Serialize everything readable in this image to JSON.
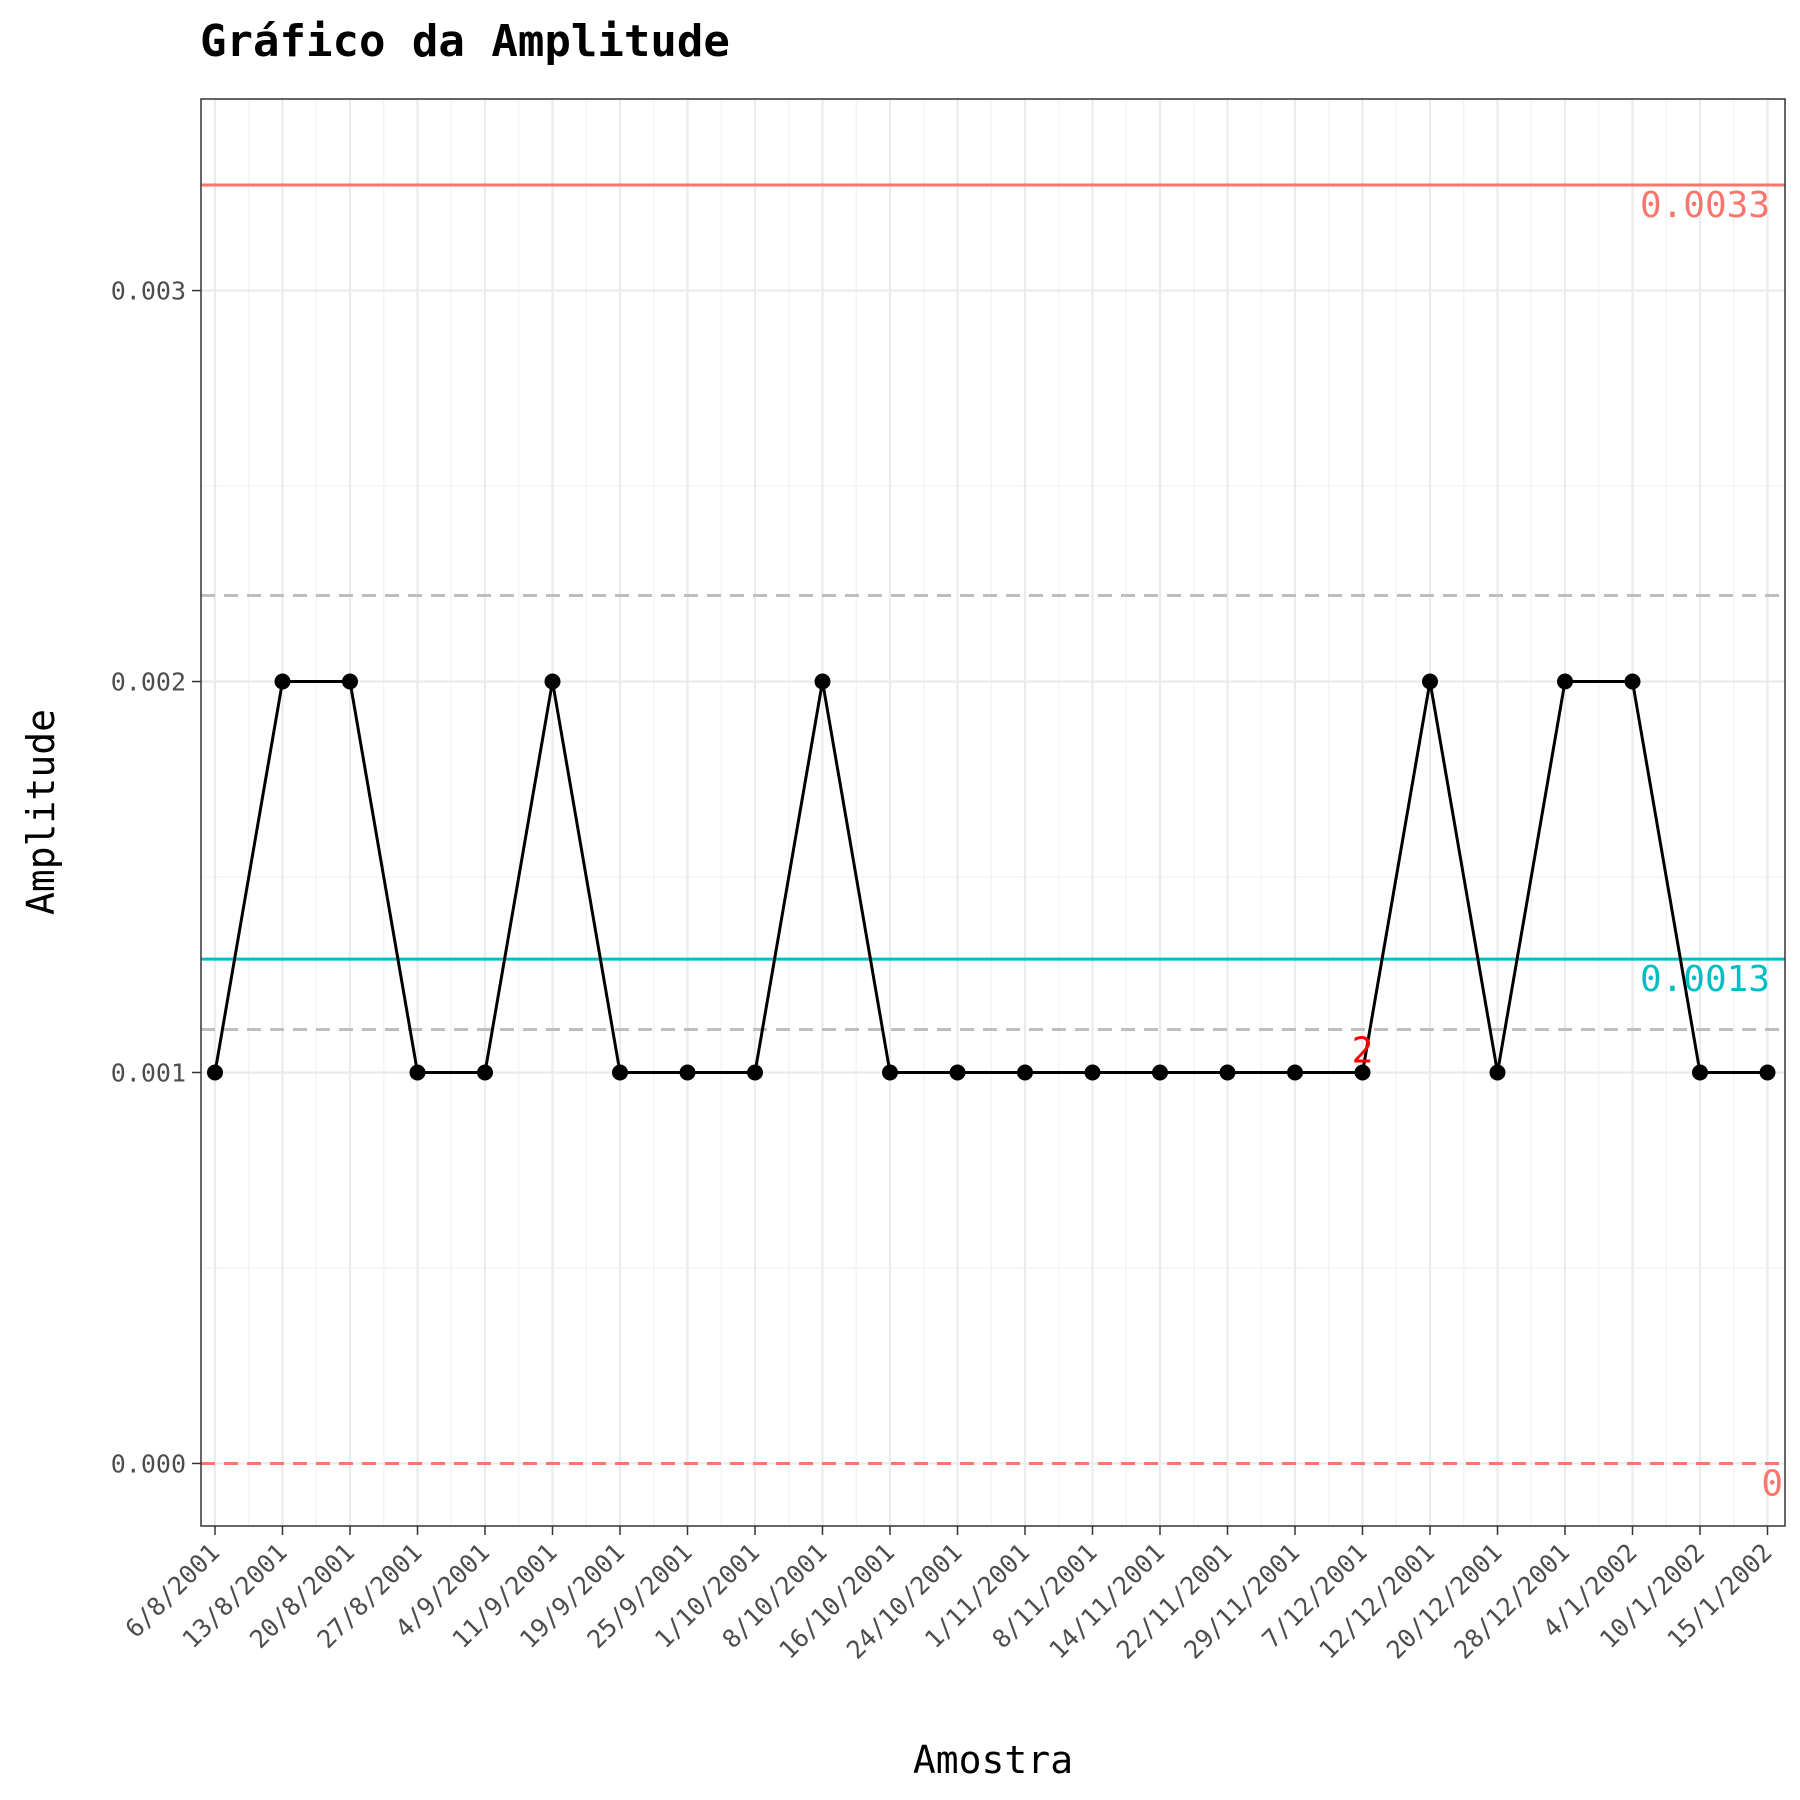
{
  "chart_data": {
    "type": "line",
    "title": "Gráfico da Amplitude",
    "xlabel": "Amostra",
    "ylabel": "Amplitude",
    "ylim": [
      -0.00016,
      0.00349
    ],
    "yticks": [
      0.0,
      0.001,
      0.002,
      0.003
    ],
    "ytick_labels": [
      "0.000",
      "0.001",
      "0.002",
      "0.003"
    ],
    "categories": [
      "6/8/2001",
      "13/8/2001",
      "20/8/2001",
      "27/8/2001",
      "4/9/2001",
      "11/9/2001",
      "19/9/2001",
      "25/9/2001",
      "1/10/2001",
      "8/10/2001",
      "16/10/2001",
      "24/10/2001",
      "1/11/2001",
      "8/11/2001",
      "14/11/2001",
      "22/11/2001",
      "29/11/2001",
      "7/12/2001",
      "12/12/2001",
      "20/12/2001",
      "28/12/2001",
      "4/1/2002",
      "10/1/2002",
      "15/1/2002"
    ],
    "values": [
      0.001,
      0.002,
      0.002,
      0.001,
      0.001,
      0.002,
      0.001,
      0.001,
      0.001,
      0.002,
      0.001,
      0.001,
      0.001,
      0.001,
      0.001,
      0.001,
      0.001,
      0.001,
      0.002,
      0.001,
      0.002,
      0.002,
      0.001,
      0.001
    ],
    "grid": true,
    "control_limits": {
      "ucl": {
        "value": 0.00327,
        "label": "0.0033",
        "color": "#F8766D",
        "style": "solid"
      },
      "center": {
        "value": 0.00129,
        "label": "0.0013",
        "color": "#00BFC4",
        "style": "solid"
      },
      "lcl": {
        "value": 0.0,
        "label": "0",
        "color": "#F8766D",
        "style": "dashed"
      }
    },
    "sigma_lines": [
      {
        "value": 0.00222,
        "color": "#bebebe",
        "style": "dashed"
      },
      {
        "value": 0.00111,
        "color": "#bebebe",
        "style": "dashed"
      },
      {
        "value": 0.0,
        "color": "#bebebe",
        "style": "dashed"
      }
    ],
    "annotations": [
      {
        "text": "2",
        "category": "7/12/2001",
        "color": "#ff0000"
      }
    ],
    "colors": {
      "series": "#000000",
      "ucl": "#F8766D",
      "center": "#00BFC4",
      "annotation": "#ff0000"
    }
  }
}
